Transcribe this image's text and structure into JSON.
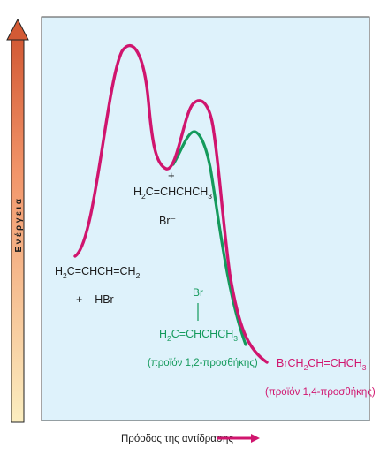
{
  "axes": {
    "y_label": "Ενέργεια",
    "x_label": "Πρόοδος της αντίδρασης"
  },
  "species": {
    "reactant_formula": [
      "H",
      "2",
      "C=CHCH=CH",
      "2"
    ],
    "reactant_reagent": "+    HBr",
    "intermediate_charge": "+",
    "intermediate_formula": [
      "H",
      "2",
      "C=CHCHCH",
      "3"
    ],
    "intermediate_counterion": "Br⁻",
    "product_12_substituent": "Br",
    "product_12_formula": [
      "H",
      "2",
      "C=CHCHCH",
      "3"
    ],
    "product_12_caption": "(προϊόν 1,2-προσθήκης)",
    "product_14_formula": [
      "BrCH",
      "2",
      "CH=CHCH",
      "3"
    ],
    "product_14_caption": "(προϊόν 1,4-προσθήκης)"
  },
  "colors": {
    "panel": "#def2fb",
    "curve_14": "#d0156e",
    "curve_12": "#149a5c",
    "arrow_top": "#d35a35",
    "arrow_bottom": "#fbeec0"
  }
}
